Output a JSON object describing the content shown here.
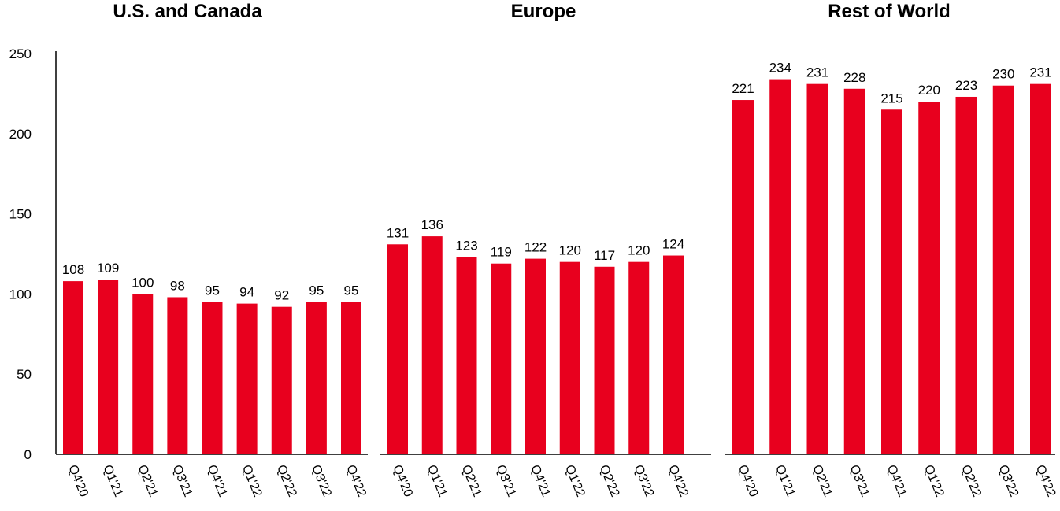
{
  "chart_data": [
    {
      "type": "bar",
      "title": "U.S. and Canada",
      "categories": [
        "Q4'20",
        "Q1'21",
        "Q2'21",
        "Q3'21",
        "Q4'21",
        "Q1'22",
        "Q2'22",
        "Q3'22",
        "Q4'22"
      ],
      "values": [
        108,
        109,
        100,
        98,
        95,
        94,
        92,
        95,
        95
      ],
      "ylim": [
        0,
        250
      ],
      "yticks": [
        "0",
        "50",
        "100",
        "150",
        "200",
        "250"
      ],
      "color": "#e8001e",
      "grid": false
    },
    {
      "type": "bar",
      "title": "Europe",
      "categories": [
        "Q4'20",
        "Q1'21",
        "Q2'21",
        "Q3'21",
        "Q4'21",
        "Q1'22",
        "Q2'22",
        "Q3'22",
        "Q4'22"
      ],
      "values": [
        131,
        136,
        123,
        119,
        122,
        120,
        117,
        120,
        124
      ],
      "ylim": [
        0,
        250
      ],
      "color": "#e8001e",
      "grid": false
    },
    {
      "type": "bar",
      "title": "Rest of World",
      "categories": [
        "Q4'20",
        "Q1'21",
        "Q2'21",
        "Q3'21",
        "Q4'21",
        "Q1'22",
        "Q2'22",
        "Q3'22",
        "Q4'22"
      ],
      "values": [
        221,
        234,
        231,
        228,
        215,
        220,
        223,
        230,
        231
      ],
      "ylim": [
        0,
        250
      ],
      "color": "#e8001e",
      "grid": false
    }
  ]
}
